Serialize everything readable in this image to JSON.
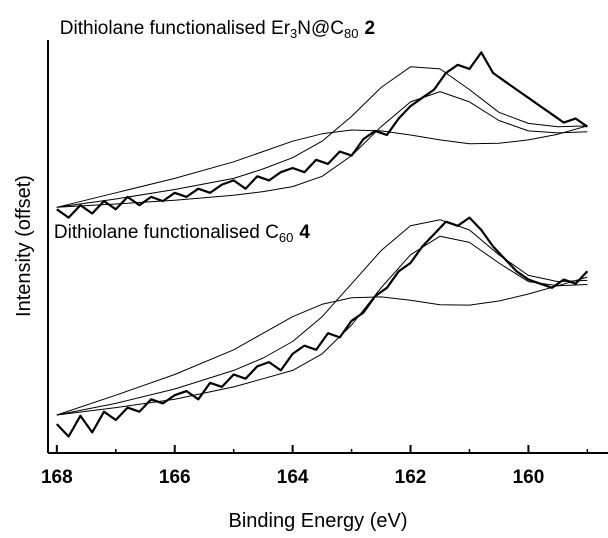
{
  "chart_data": {
    "type": "line",
    "xlabel": "Binding Energy (eV)",
    "ylabel": "Intensity (offset)",
    "xlim": [
      168.15,
      158.65
    ],
    "ylim": [
      0,
      100
    ],
    "xticks": [
      168,
      166,
      164,
      162,
      160
    ],
    "xminor": [
      167,
      165,
      163,
      161,
      159
    ],
    "annotations": [
      {
        "x": 167.95,
        "y": 101.5,
        "parts": [
          {
            "text": "Dithiolane functionalised Er"
          },
          {
            "text": "3",
            "sub": true
          },
          {
            "text": "N@C"
          },
          {
            "text": "80",
            "sub": true
          },
          {
            "text": "2",
            "bold": true
          }
        ]
      },
      {
        "x": 168.05,
        "y": 52,
        "parts": [
          {
            "text": "Dithiolane functionalised C"
          },
          {
            "text": "60",
            "sub": true
          },
          {
            "text": "4",
            "bold": true
          }
        ]
      }
    ],
    "series": [
      {
        "name": "Er3N@C80 2 data",
        "color": "#000000",
        "width": 2.2,
        "x": [
          168,
          167.8,
          167.6,
          167.4,
          167.2,
          167,
          166.8,
          166.6,
          166.4,
          166.2,
          166,
          165.8,
          165.6,
          165.4,
          165.2,
          165,
          164.8,
          164.6,
          164.4,
          164.2,
          164,
          163.8,
          163.6,
          163.4,
          163.2,
          163,
          162.8,
          162.6,
          162.4,
          162.2,
          162,
          161.8,
          161.6,
          161.4,
          161.2,
          161,
          160.8,
          160.6,
          160.4,
          160.2,
          160,
          159.8,
          159.6,
          159.4,
          159.2,
          159
        ],
        "values": [
          59,
          57,
          60,
          58,
          61,
          59,
          62,
          60,
          62,
          61,
          63,
          62,
          64,
          63,
          65,
          66,
          64,
          67,
          66,
          68,
          69,
          68,
          71,
          70,
          73,
          72,
          76,
          78,
          77,
          81,
          84,
          86,
          88,
          92,
          94,
          93,
          97,
          92,
          90,
          88,
          86,
          84,
          82,
          80,
          81,
          79
        ]
      },
      {
        "name": "Er3N@C80 2 fit",
        "color": "#000000",
        "width": 1,
        "x": [
          168,
          167,
          166,
          165,
          164.5,
          164,
          163.5,
          163,
          162.5,
          162,
          161.5,
          161,
          160.5,
          160,
          159.5,
          159
        ],
        "values": [
          59.5,
          61.5,
          63.8,
          66.5,
          68.8,
          71.5,
          75.5,
          81.5,
          88.5,
          93.5,
          93,
          88,
          82.5,
          79.8,
          79,
          79.2
        ]
      },
      {
        "name": "Er3N@C80 2 component 1",
        "color": "#000000",
        "width": 1,
        "x": [
          168,
          167,
          166,
          165,
          164.5,
          164,
          163.5,
          163,
          162.5,
          162,
          161.5,
          161,
          160.5,
          160,
          159.5,
          159
        ],
        "values": [
          59.5,
          60.3,
          61.2,
          62.4,
          63.3,
          64.5,
          67,
          72,
          79,
          85,
          87.5,
          85,
          80.5,
          78,
          77.5,
          77.8
        ]
      },
      {
        "name": "Er3N@C80 2 component 2",
        "color": "#000000",
        "width": 1,
        "x": [
          168,
          167,
          166,
          165,
          164.5,
          164,
          163.5,
          163,
          162.5,
          162,
          161.5,
          161,
          160.5,
          160,
          159.5,
          159
        ],
        "values": [
          59.5,
          63,
          66.5,
          70.5,
          73,
          75.5,
          77.3,
          78.2,
          78,
          77,
          75.8,
          74.9,
          75,
          75.8,
          77.2,
          79.2
        ]
      },
      {
        "name": "C60 4 data",
        "color": "#000000",
        "width": 2.2,
        "x": [
          168,
          167.8,
          167.6,
          167.4,
          167.2,
          167,
          166.8,
          166.6,
          166.4,
          166.2,
          166,
          165.8,
          165.6,
          165.4,
          165.2,
          165,
          164.8,
          164.6,
          164.4,
          164.2,
          164,
          163.8,
          163.6,
          163.4,
          163.2,
          163,
          162.8,
          162.6,
          162.4,
          162.2,
          162,
          161.8,
          161.6,
          161.4,
          161.2,
          161,
          160.8,
          160.6,
          160.4,
          160.2,
          160,
          159.8,
          159.6,
          159.4,
          159.2,
          159
        ],
        "values": [
          7,
          4,
          9,
          5,
          10,
          8,
          11,
          10,
          13,
          12,
          14,
          15,
          13,
          17,
          16,
          19,
          18,
          21,
          22,
          20,
          24,
          26,
          25,
          29,
          28,
          32,
          34,
          38,
          40,
          44,
          46,
          50,
          53,
          56,
          55,
          57,
          54,
          50,
          47,
          44,
          42,
          41,
          40,
          42,
          41,
          44
        ]
      },
      {
        "name": "C60 4 fit",
        "color": "#000000",
        "width": 1,
        "x": [
          168,
          167,
          166,
          165,
          164.5,
          164,
          163.5,
          163,
          162.5,
          162,
          161.5,
          161,
          160.5,
          160,
          159.5,
          159
        ],
        "values": [
          9.2,
          12,
          15.5,
          20,
          23,
          27,
          33,
          41,
          49,
          55,
          56.5,
          54,
          48,
          43,
          41.5,
          41.8
        ]
      },
      {
        "name": "C60 4 component 1",
        "color": "#000000",
        "width": 1,
        "x": [
          168,
          167,
          166,
          165,
          164.5,
          164,
          163.5,
          163,
          162.5,
          162,
          161.5,
          161,
          160.5,
          160,
          159.5,
          159
        ],
        "values": [
          9.2,
          11,
          13,
          16,
          18,
          20,
          24,
          31,
          40,
          48,
          52.5,
          51,
          46,
          41.5,
          40.5,
          40.8
        ]
      },
      {
        "name": "C60 4 component 2",
        "color": "#000000",
        "width": 1,
        "x": [
          168,
          167,
          166,
          165,
          164.5,
          164,
          163.5,
          163,
          162.5,
          162,
          161.5,
          161,
          160.5,
          160,
          159.5,
          159
        ],
        "values": [
          9.2,
          14,
          19,
          25,
          29,
          33,
          36,
          37.6,
          37.8,
          37,
          35.9,
          35.8,
          36.8,
          38.5,
          40.5,
          42.6
        ]
      }
    ]
  }
}
